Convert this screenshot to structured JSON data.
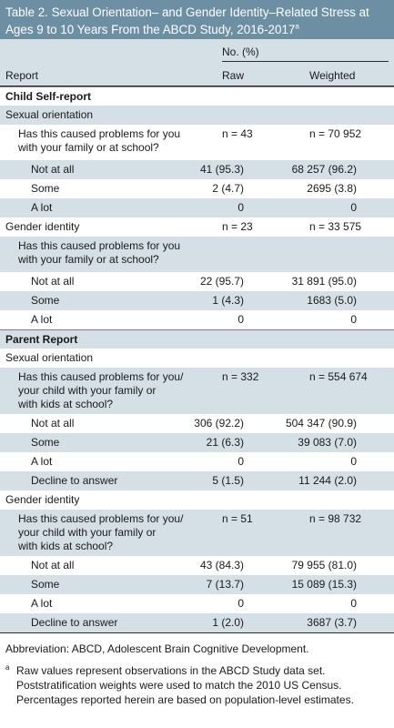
{
  "title": {
    "text": "Table 2. Sexual Orientation– and Gender Identity–Related Stress at Ages 9 to 10 Years From the ABCD Study, 2016-2017",
    "superscript": "a"
  },
  "header": {
    "no_pct": "No. (%)",
    "report": "Report",
    "raw": "Raw",
    "weighted": "Weighted"
  },
  "rows": [
    {
      "label": "Child Self-report",
      "raw": "",
      "weighted": "",
      "kind": "section",
      "bold": true,
      "indent": 0
    },
    {
      "label": "Sexual orientation",
      "raw": "",
      "weighted": "",
      "kind": "group",
      "indent": 0
    },
    {
      "label": "Has this caused problems for you\nwith your family or at school?",
      "raw": "n = 43",
      "weighted": "n = 70 952",
      "kind": "question",
      "indent": 1
    },
    {
      "label": "Not at all",
      "raw": "41 (95.3)",
      "weighted": "68 257 (96.2)",
      "kind": "value",
      "indent": 2
    },
    {
      "label": "Some",
      "raw": "2 (4.7)",
      "weighted": "2695 (3.8)",
      "kind": "value",
      "indent": 2
    },
    {
      "label": "A lot",
      "raw": "0",
      "weighted": "0",
      "kind": "value",
      "indent": 2
    },
    {
      "label": "Gender identity",
      "raw": "n = 23",
      "weighted": "n = 33 575",
      "kind": "group",
      "indent": 0
    },
    {
      "label": "Has this caused problems for you\nwith your family or at school?",
      "raw": "",
      "weighted": "",
      "kind": "question",
      "indent": 1
    },
    {
      "label": "Not at all",
      "raw": "22 (95.7)",
      "weighted": "31 891 (95.0)",
      "kind": "value",
      "indent": 2
    },
    {
      "label": "Some",
      "raw": "1 (4.3)",
      "weighted": "1683 (5.0)",
      "kind": "value",
      "indent": 2
    },
    {
      "label": "A lot",
      "raw": "0",
      "weighted": "0",
      "kind": "value",
      "indent": 2
    },
    {
      "label": "Parent Report",
      "raw": "",
      "weighted": "",
      "kind": "section",
      "bold": true,
      "indent": 0
    },
    {
      "label": "Sexual orientation",
      "raw": "",
      "weighted": "",
      "kind": "group",
      "indent": 0
    },
    {
      "label": "Has this caused problems for you/\nyour child with your family or\nwith kids at school?",
      "raw": "n = 332",
      "weighted": "n = 554 674",
      "kind": "question",
      "indent": 1
    },
    {
      "label": "Not at all",
      "raw": "306 (92.2)",
      "weighted": "504 347 (90.9)",
      "kind": "value",
      "indent": 2
    },
    {
      "label": "Some",
      "raw": "21 (6.3)",
      "weighted": "39 083 (7.0)",
      "kind": "value",
      "indent": 2
    },
    {
      "label": "A lot",
      "raw": "0",
      "weighted": "0",
      "kind": "value",
      "indent": 2
    },
    {
      "label": "Decline to answer",
      "raw": "5 (1.5)",
      "weighted": "11 244 (2.0)",
      "kind": "value",
      "indent": 2
    },
    {
      "label": "Gender identity",
      "raw": "",
      "weighted": "",
      "kind": "group",
      "indent": 0
    },
    {
      "label": "Has this caused problems for you/\nyour child with your family or\nwith kids at school?",
      "raw": "n = 51",
      "weighted": "n = 98 732",
      "kind": "question",
      "indent": 1
    },
    {
      "label": "Not at all",
      "raw": "43 (84.3)",
      "weighted": "79 955 (81.0)",
      "kind": "value",
      "indent": 2
    },
    {
      "label": "Some",
      "raw": "7 (13.7)",
      "weighted": "15 089 (15.3)",
      "kind": "value",
      "indent": 2
    },
    {
      "label": "A lot",
      "raw": "0",
      "weighted": "0",
      "kind": "value",
      "indent": 2
    },
    {
      "label": "Decline to answer",
      "raw": "1 (2.0)",
      "weighted": "3687 (3.7)",
      "kind": "value",
      "indent": 2
    }
  ],
  "footnotes": {
    "abbreviation": "Abbreviation: ABCD, Adolescent Brain Cognitive Development.",
    "note_marker": "a",
    "note": "Raw values represent observations in the ABCD Study data set. Poststratification weights were used to match the 2010 US Census. Percentages reported herein are based on population-level estimates."
  }
}
